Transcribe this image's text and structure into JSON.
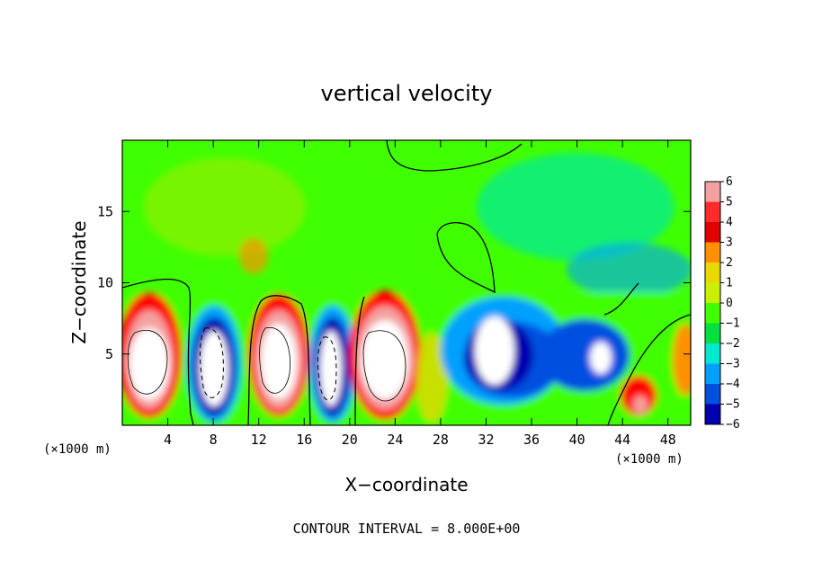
{
  "chart_data": {
    "type": "heatmap",
    "title": "vertical velocity",
    "xlabel": "X−coordinate",
    "ylabel": "Z−coordinate",
    "x_unit_label": "(×1000 m)",
    "xlim": [
      0,
      50
    ],
    "ylim": [
      0,
      20
    ],
    "x_ticks": [
      4,
      8,
      12,
      16,
      20,
      24,
      28,
      32,
      36,
      40,
      44,
      48
    ],
    "y_ticks": [
      5,
      10,
      15
    ],
    "colorbar": {
      "levels": [
        6,
        5,
        4,
        3,
        2,
        1,
        0,
        -1,
        -2,
        -3,
        -4,
        -5,
        -6
      ],
      "colors": [
        "#f4a0a0",
        "#ff2a2a",
        "#e00000",
        "#ff9000",
        "#e8d800",
        "#c8f000",
        "#40ff00",
        "#00e040",
        "#00e8d0",
        "#00a0ff",
        "#0050e0",
        "#0000b0",
        "#6000a0"
      ]
    },
    "contour_interval_text": "CONTOUR INTERVAL = 8.000E+00",
    "updraft_cores": [
      {
        "x": 2.4,
        "z": 4.6,
        "w": 14
      },
      {
        "x": 13.3,
        "z": 5.2,
        "w": 14
      },
      {
        "x": 23.7,
        "z": 5.3,
        "w": 14
      },
      {
        "x": 45.5,
        "z": 1.4,
        "w": 5
      }
    ],
    "downdraft_cores": [
      {
        "x": 7.8,
        "z": 4.5,
        "w": -14
      },
      {
        "x": 18.5,
        "z": 4.3,
        "w": -14
      },
      {
        "x": 33.5,
        "z": 5.5,
        "w": -9
      },
      {
        "x": 40.5,
        "z": 3.8,
        "w": -5
      }
    ]
  }
}
